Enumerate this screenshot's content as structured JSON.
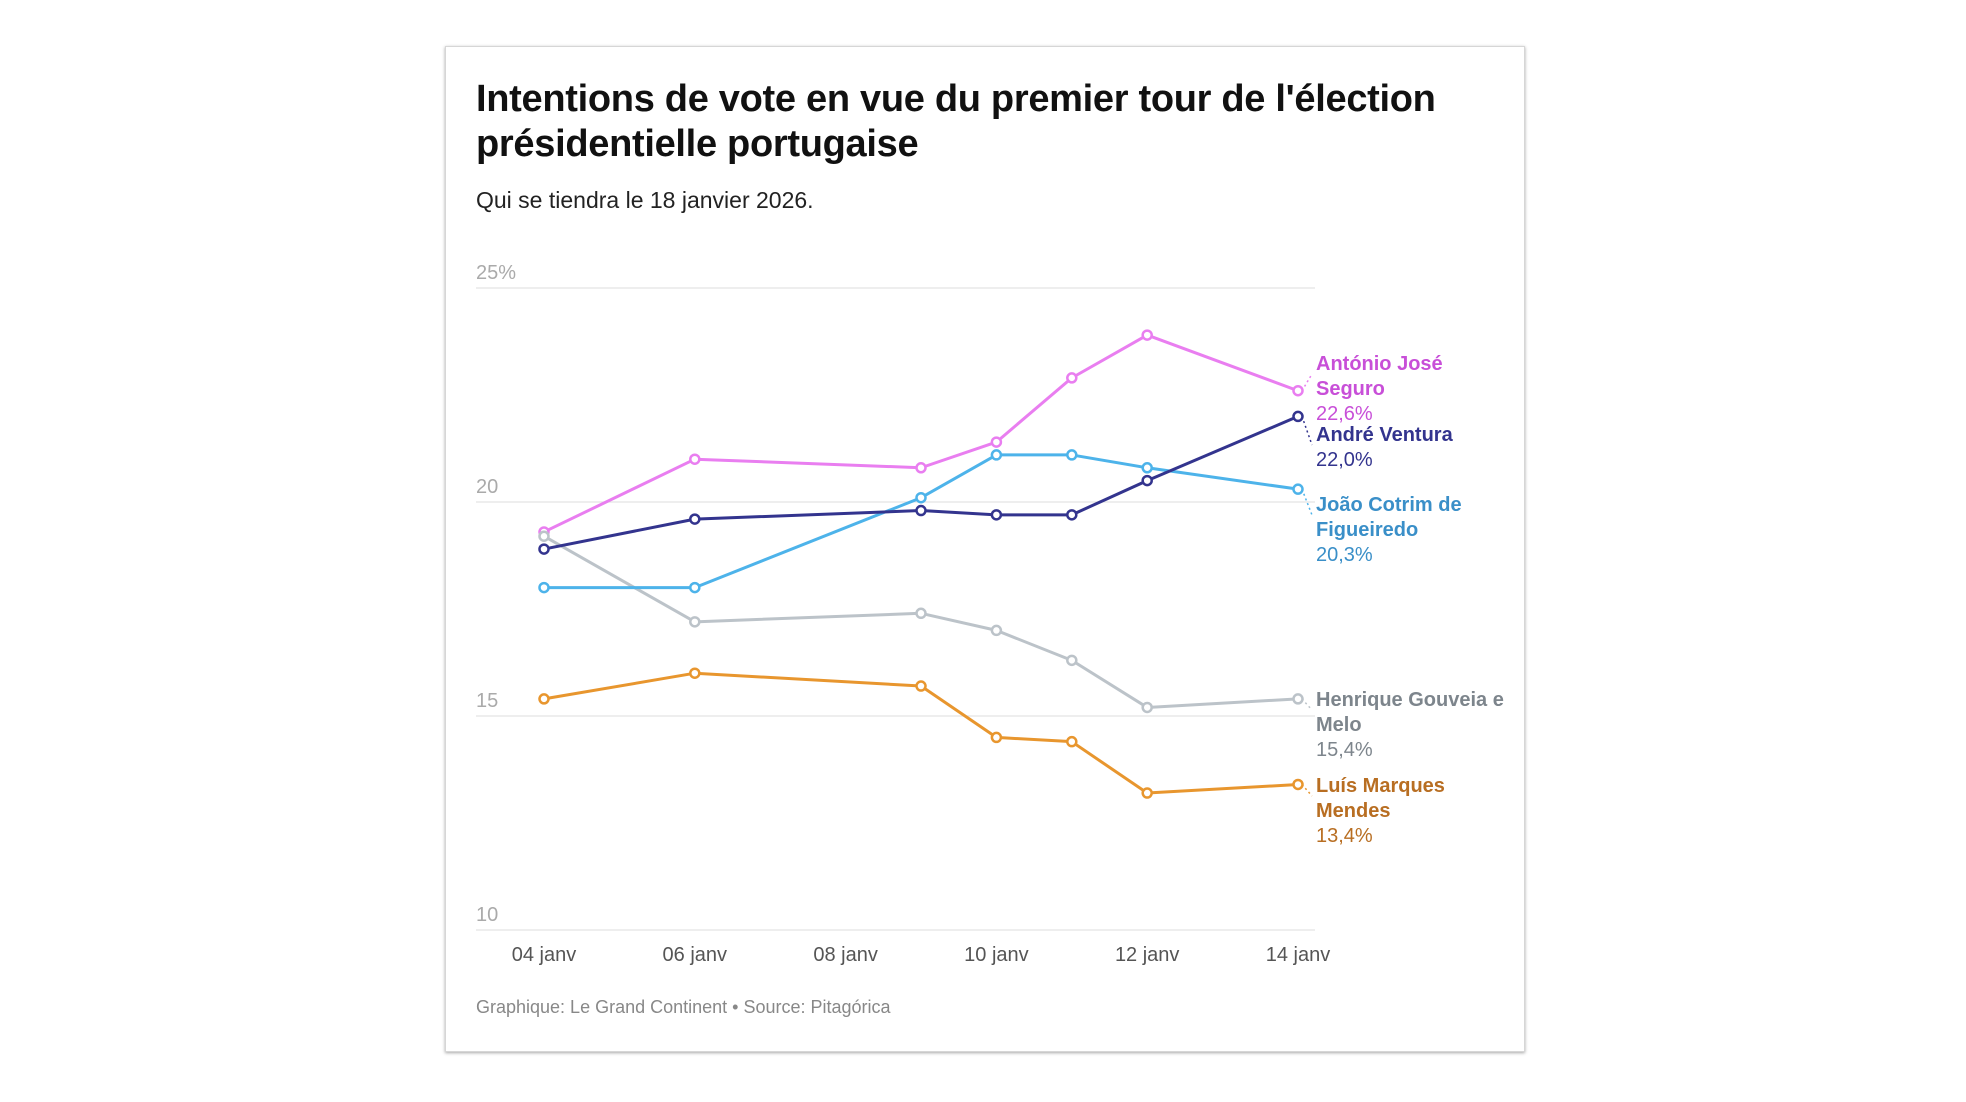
{
  "chart_data": {
    "type": "line",
    "title": "Intentions de vote en vue du premier tour de l'élection présidentielle portugaise",
    "subtitle": "Qui se tiendra le 18 janvier 2026.",
    "footer": "Graphique: Le Grand Continent • Source: Pitagórica",
    "x": [
      "2026-01-04",
      "2026-01-06",
      "2026-01-09",
      "2026-01-10",
      "2026-01-11",
      "2026-01-12",
      "2026-01-14"
    ],
    "x_ticks": [
      "04 janv",
      "06 janv",
      "08 janv",
      "10 janv",
      "12 janv",
      "14 janv"
    ],
    "y_ticks": [
      "25%",
      "20",
      "15",
      "10"
    ],
    "ylim": [
      10,
      25
    ],
    "grid": true,
    "legend": "right, inline end labels",
    "series": [
      {
        "name": "António José Seguro",
        "end_label": "22,6%",
        "color": "#e97ef0",
        "label_color": "#c84fd8",
        "values": [
          19.3,
          21.0,
          20.8,
          21.4,
          22.9,
          23.9,
          22.6
        ]
      },
      {
        "name": "André Ventura",
        "end_label": "22,0%",
        "color": "#33348e",
        "label_color": "#33348e",
        "values": [
          18.9,
          19.6,
          19.8,
          19.7,
          19.7,
          20.5,
          22.0
        ]
      },
      {
        "name": "João Cotrim de Figueiredo",
        "end_label": "20,3%",
        "color": "#4db3ea",
        "label_color": "#3a8fc8",
        "values": [
          18.0,
          18.0,
          20.1,
          21.1,
          21.1,
          20.8,
          20.3
        ]
      },
      {
        "name": "Henrique Gouveia e Melo",
        "end_label": "15,4%",
        "color": "#bcc3c9",
        "label_color": "#7d858c",
        "values": [
          19.2,
          17.2,
          17.4,
          17.0,
          16.3,
          15.2,
          15.4
        ]
      },
      {
        "name": "Luís Marques Mendes",
        "end_label": "13,4%",
        "color": "#e8962e",
        "label_color": "#b86e22",
        "values": [
          15.4,
          16.0,
          15.7,
          14.5,
          14.4,
          13.2,
          13.4
        ]
      }
    ]
  }
}
